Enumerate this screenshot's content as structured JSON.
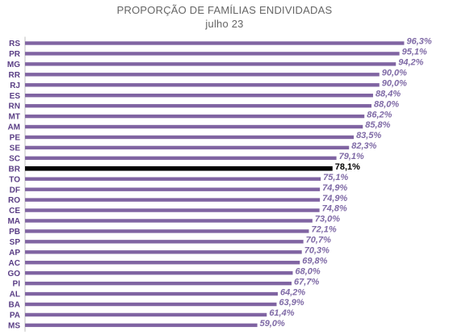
{
  "chart_data": {
    "type": "bar",
    "orientation": "horizontal",
    "title": "PROPORÇÃO DE FAMÍLIAS ENDIVIDADAS",
    "subtitle": "julho 23",
    "xlim": [
      0,
      100
    ],
    "grid": false,
    "legend": "none",
    "categories": [
      "RS",
      "PR",
      "MG",
      "RR",
      "RJ",
      "ES",
      "RN",
      "MT",
      "AM",
      "PE",
      "SE",
      "SC",
      "BR",
      "TO",
      "DF",
      "RO",
      "CE",
      "MA",
      "PB",
      "SP",
      "AP",
      "AC",
      "GO",
      "PI",
      "AL",
      "BA",
      "PA",
      "MS"
    ],
    "values": [
      96.3,
      95.1,
      94.2,
      90.0,
      90.0,
      88.4,
      88.0,
      86.2,
      85.8,
      83.5,
      82.3,
      79.1,
      78.1,
      75.1,
      74.9,
      74.9,
      74.8,
      73.0,
      72.1,
      70.7,
      70.3,
      69.8,
      68.0,
      67.7,
      64.2,
      63.9,
      61.4,
      59.0
    ],
    "value_labels": [
      "96,3%",
      "95,1%",
      "94,2%",
      "90,0%",
      "90,0%",
      "88,4%",
      "88,0%",
      "86,2%",
      "85,8%",
      "83,5%",
      "82,3%",
      "79,1%",
      "78,1%",
      "75,1%",
      "74,9%",
      "74,9%",
      "74,8%",
      "73,0%",
      "72,1%",
      "70,7%",
      "70,3%",
      "69,8%",
      "68,0%",
      "67,7%",
      "64,2%",
      "63,9%",
      "61,4%",
      "59,0%"
    ],
    "highlight_category": "BR",
    "colors": {
      "bar": "#8064a2",
      "highlight": "#000000",
      "label": "#7f6aa6",
      "category": "#5a3e85",
      "title": "#666666"
    }
  }
}
